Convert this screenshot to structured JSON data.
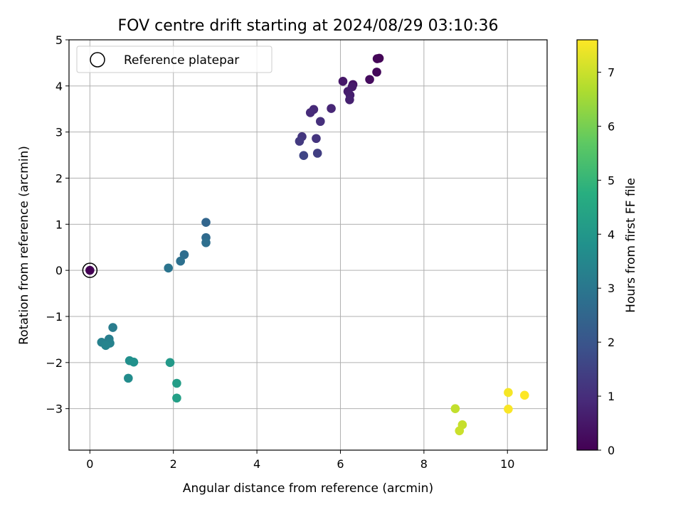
{
  "chart_data": {
    "type": "scatter",
    "title": "FOV centre drift starting at 2024/08/29 03:10:36",
    "xlabel": "Angular distance from reference (arcmin)",
    "ylabel": "Rotation from reference (arcmin)",
    "xlim": [
      -0.5,
      10.95
    ],
    "ylim": [
      -3.9,
      5.0
    ],
    "xticks": [
      0,
      2,
      4,
      6,
      8,
      10
    ],
    "yticks": [
      -3,
      -2,
      -1,
      0,
      1,
      2,
      3,
      4,
      5
    ],
    "grid": true,
    "legend": {
      "position": "top-left",
      "entries": [
        "Reference platepar"
      ]
    },
    "reference_point": {
      "x": 0,
      "y": 0
    },
    "colorbar": {
      "label": "Hours from first FF file",
      "colormap": "viridis",
      "range": [
        0,
        7.6
      ],
      "ticks": [
        0,
        1,
        2,
        3,
        4,
        5,
        6,
        7
      ]
    },
    "points": [
      {
        "x": 0.0,
        "y": 0.0,
        "t": 0.0
      },
      {
        "x": 6.93,
        "y": 4.6,
        "t": 0.05
      },
      {
        "x": 6.88,
        "y": 4.59,
        "t": 0.1
      },
      {
        "x": 6.87,
        "y": 4.3,
        "t": 0.15
      },
      {
        "x": 6.7,
        "y": 4.14,
        "t": 0.25
      },
      {
        "x": 6.3,
        "y": 4.03,
        "t": 0.4
      },
      {
        "x": 6.06,
        "y": 4.1,
        "t": 0.5
      },
      {
        "x": 6.28,
        "y": 3.98,
        "t": 0.55
      },
      {
        "x": 6.18,
        "y": 3.88,
        "t": 0.6
      },
      {
        "x": 6.23,
        "y": 3.8,
        "t": 0.65
      },
      {
        "x": 6.22,
        "y": 3.7,
        "t": 0.7
      },
      {
        "x": 5.78,
        "y": 3.51,
        "t": 0.85
      },
      {
        "x": 5.36,
        "y": 3.49,
        "t": 0.9
      },
      {
        "x": 5.28,
        "y": 3.42,
        "t": 0.95
      },
      {
        "x": 5.52,
        "y": 3.23,
        "t": 1.05
      },
      {
        "x": 5.42,
        "y": 2.86,
        "t": 1.15
      },
      {
        "x": 5.08,
        "y": 2.9,
        "t": 1.2
      },
      {
        "x": 5.02,
        "y": 2.8,
        "t": 1.3
      },
      {
        "x": 5.45,
        "y": 2.54,
        "t": 1.4
      },
      {
        "x": 5.12,
        "y": 2.49,
        "t": 1.55
      },
      {
        "x": 2.78,
        "y": 1.04,
        "t": 2.5
      },
      {
        "x": 2.78,
        "y": 0.71,
        "t": 2.6
      },
      {
        "x": 2.26,
        "y": 0.34,
        "t": 2.7
      },
      {
        "x": 2.78,
        "y": 0.6,
        "t": 2.75
      },
      {
        "x": 2.17,
        "y": 0.2,
        "t": 2.8
      },
      {
        "x": 1.88,
        "y": 0.05,
        "t": 2.9
      },
      {
        "x": 0.55,
        "y": -1.24,
        "t": 3.15
      },
      {
        "x": 0.46,
        "y": -1.49,
        "t": 3.2
      },
      {
        "x": 0.28,
        "y": -1.56,
        "t": 3.3
      },
      {
        "x": 0.48,
        "y": -1.58,
        "t": 3.35
      },
      {
        "x": 0.38,
        "y": -1.63,
        "t": 3.4
      },
      {
        "x": 0.92,
        "y": -2.34,
        "t": 3.65
      },
      {
        "x": 0.95,
        "y": -1.96,
        "t": 3.75
      },
      {
        "x": 1.05,
        "y": -1.99,
        "t": 3.8
      },
      {
        "x": 1.92,
        "y": -2.0,
        "t": 4.05
      },
      {
        "x": 2.08,
        "y": -2.45,
        "t": 4.2
      },
      {
        "x": 2.08,
        "y": -2.77,
        "t": 4.25
      },
      {
        "x": 8.75,
        "y": -3.0,
        "t": 6.9
      },
      {
        "x": 8.92,
        "y": -3.35,
        "t": 6.95
      },
      {
        "x": 8.85,
        "y": -3.48,
        "t": 7.0
      },
      {
        "x": 10.02,
        "y": -2.65,
        "t": 7.5
      },
      {
        "x": 10.02,
        "y": -3.01,
        "t": 7.55
      },
      {
        "x": 10.41,
        "y": -2.71,
        "t": 7.6
      }
    ]
  }
}
